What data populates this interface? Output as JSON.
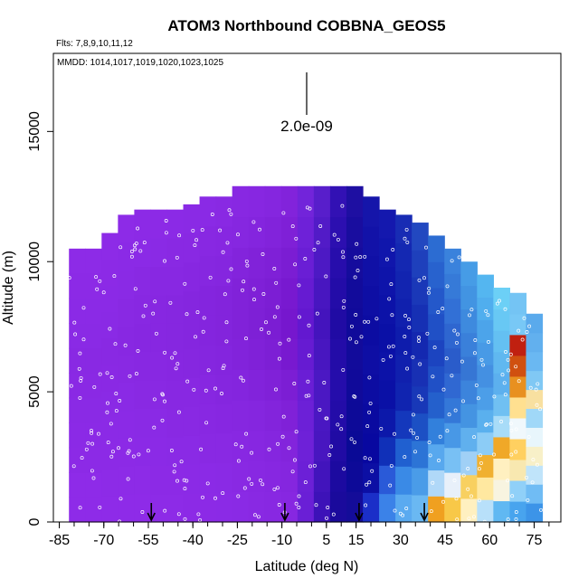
{
  "chart_data": {
    "type": "heatmap",
    "title": "ATOM3 Northbound COBBNA_GEOS5",
    "subtitle": "Flts: 7,8,9,10,11,12",
    "legend_note": "MMDD: 1014,1017,1019,1020,1023,1025",
    "xlabel": "Latitude (deg N)",
    "ylabel": "Altitude (m)",
    "xlim": [
      -87,
      84
    ],
    "ylim": [
      0,
      18000
    ],
    "x_ticks": [
      -85,
      -70,
      -55,
      -40,
      -25,
      -10,
      5,
      15,
      30,
      45,
      60,
      75
    ],
    "y_ticks": [
      0,
      5000,
      10000,
      15000
    ],
    "scale_bar_label": "2.0e-09",
    "arrow_latitudes": [
      -54,
      -9,
      16,
      38
    ],
    "columns": [
      {
        "lat": -79.0,
        "top": 10500,
        "colors": [
          "#8e2be8",
          "#8e2be8",
          "#8c2ae6",
          "#8b2ae6",
          "#8a2ae5",
          "#8a29e4",
          "#8929e3",
          "#8a2ae5",
          "#8b2ae6",
          "#8c2ae6",
          "#8d2be7"
        ]
      },
      {
        "lat": -73.5,
        "top": 10500,
        "colors": [
          "#8e2be8",
          "#8e2be8",
          "#8c2ae6",
          "#8b2ae6",
          "#8a2ae5",
          "#8a29e4",
          "#8929e3",
          "#8a2ae5",
          "#8b2ae6",
          "#8c2ae6",
          "#8d2be7"
        ]
      },
      {
        "lat": -68.0,
        "top": 11100,
        "colors": [
          "#8e2be8",
          "#8d2be7",
          "#8c2ae6",
          "#8b2ae6",
          "#8a2ae5",
          "#8a29e4",
          "#8929e3",
          "#8a2ae5",
          "#8b2ae6",
          "#8c2ae6",
          "#8d2be7"
        ]
      },
      {
        "lat": -62.5,
        "top": 11800,
        "colors": [
          "#8e2be8",
          "#8d2be7",
          "#8c2ae6",
          "#8b2ae6",
          "#8a2ae5",
          "#8929e3",
          "#8828e2",
          "#8929e3",
          "#8a2ae5",
          "#8b2ae6",
          "#8d2be7"
        ]
      },
      {
        "lat": -57.0,
        "top": 12000,
        "colors": [
          "#8e2be8",
          "#8d2be7",
          "#8b2ae6",
          "#8a2ae5",
          "#8929e3",
          "#8828e2",
          "#8727e1",
          "#8828e2",
          "#8929e3",
          "#8b2ae6",
          "#8c2ae6"
        ]
      },
      {
        "lat": -51.5,
        "top": 12000,
        "colors": [
          "#8d2be7",
          "#8c2ae6",
          "#8b2ae6",
          "#8a2ae5",
          "#8929e3",
          "#8828e2",
          "#8727e1",
          "#8727e1",
          "#8828e2",
          "#8a2ae5",
          "#8c2ae6"
        ]
      },
      {
        "lat": -46.0,
        "top": 12000,
        "colors": [
          "#8d2be7",
          "#8c2ae6",
          "#8a2ae5",
          "#8929e3",
          "#8828e2",
          "#8727e1",
          "#8627e0",
          "#8627e0",
          "#8828e2",
          "#8929e3",
          "#8b2ae6"
        ]
      },
      {
        "lat": -40.5,
        "top": 12200,
        "colors": [
          "#8c2ae6",
          "#8b2ae6",
          "#8a2ae5",
          "#8929e3",
          "#8828e2",
          "#8627e0",
          "#8526df",
          "#8526df",
          "#8727e1",
          "#8929e3",
          "#8a2ae5"
        ]
      },
      {
        "lat": -35.0,
        "top": 12500,
        "colors": [
          "#8c2ae6",
          "#8b2ae6",
          "#8929e3",
          "#8828e2",
          "#8727e1",
          "#8526df",
          "#8425de",
          "#8425de",
          "#8627e0",
          "#8828e2",
          "#8a2ae5"
        ]
      },
      {
        "lat": -29.5,
        "top": 12500,
        "colors": [
          "#8b2ae6",
          "#8a2ae5",
          "#8929e3",
          "#8727e1",
          "#8526df",
          "#8425de",
          "#8324dc",
          "#8324dc",
          "#8526df",
          "#8727e1",
          "#8929e3"
        ]
      },
      {
        "lat": -24.0,
        "top": 12900,
        "colors": [
          "#8a2ae5",
          "#8929e3",
          "#8828e2",
          "#8627e0",
          "#8425de",
          "#8223db",
          "#8122d9",
          "#8122d9",
          "#8324dc",
          "#8627e0",
          "#8828e2"
        ]
      },
      {
        "lat": -18.5,
        "top": 12900,
        "colors": [
          "#8929e3",
          "#8828e2",
          "#8727e1",
          "#8526df",
          "#8223db",
          "#8021d8",
          "#7e20d6",
          "#7f20d7",
          "#8122d9",
          "#8425de",
          "#8727e1"
        ]
      },
      {
        "lat": -13.0,
        "top": 12900,
        "colors": [
          "#8828e2",
          "#8727e1",
          "#8526df",
          "#8324dc",
          "#8021d8",
          "#7d1fd5",
          "#7b1dd3",
          "#7c1ed4",
          "#7f20d7",
          "#8223db",
          "#8526df"
        ]
      },
      {
        "lat": -7.5,
        "top": 12900,
        "colors": [
          "#8727e1",
          "#8526df",
          "#8324dc",
          "#8021d8",
          "#7c1ed4",
          "#7819d0",
          "#7617ce",
          "#7819d0",
          "#7b1dd3",
          "#7f20d7",
          "#8223db"
        ]
      },
      {
        "lat": -2.0,
        "top": 12900,
        "colors": [
          "#6a1fd6",
          "#6c20d7",
          "#6e21d8",
          "#6c20d7",
          "#6a1ed5",
          "#661bd2",
          "#6318d0",
          "#661bd2",
          "#6a1ed5",
          "#6e21d8",
          "#7224da"
        ]
      },
      {
        "lat": 3.5,
        "top": 12900,
        "colors": [
          "#3d12b8",
          "#4214bc",
          "#4816c0",
          "#4a17c2",
          "#4b18c3",
          "#4816c0",
          "#4414bd",
          "#4816c0",
          "#4d19c4",
          "#521bc7",
          "#581ecb"
        ]
      },
      {
        "lat": 9.0,
        "top": 12900,
        "colors": [
          "#1a0a9c",
          "#1c0aa0",
          "#200ba4",
          "#230ca8",
          "#250dab",
          "#230ca8",
          "#200ba4",
          "#230ca8",
          "#270dac",
          "#2c0fb0",
          "#3211b4"
        ]
      },
      {
        "lat": 14.5,
        "top": 12900,
        "colors": [
          "#140c99",
          "#0d0a98",
          "#0a0a96",
          "#0d0a98",
          "#100a9a",
          "#120b9b",
          "#100a9a",
          "#120b9b",
          "#150c9d",
          "#190d9f",
          "#1e0fa2"
        ]
      },
      {
        "lat": 20.0,
        "top": 12500,
        "colors": [
          "#1b2fc8",
          "#0c0fa4",
          "#0808a0",
          "#0a0aa0",
          "#0c0ca2",
          "#0e0ea4",
          "#0c0ca2",
          "#0e0ea4",
          "#1010a6",
          "#1212a8",
          "#1515aa"
        ]
      },
      {
        "lat": 25.5,
        "top": 12000,
        "colors": [
          "#3b82e8",
          "#2a5ad8",
          "#1030b8",
          "#0c18aa",
          "#0a10a6",
          "#0c12a8",
          "#0a10a6",
          "#0c12a8",
          "#0e14aa",
          "#1016ac",
          "#1418ae"
        ]
      },
      {
        "lat": 31.0,
        "top": 11800,
        "colors": [
          "#5aaaf0",
          "#3a8ae6",
          "#2060d0",
          "#1438bc",
          "#1024b0",
          "#1020ae",
          "#0e1cac",
          "#1020ae",
          "#1224b0",
          "#1428b2",
          "#182cb4"
        ]
      },
      {
        "lat": 36.5,
        "top": 11500,
        "colors": [
          "#6ab8f2",
          "#4a9ce8",
          "#2c74d6",
          "#1c50c4",
          "#1838b8",
          "#1830b4",
          "#1428b0",
          "#1630b4",
          "#1a38b8",
          "#1e40bc",
          "#2248c0"
        ]
      },
      {
        "lat": 42.0,
        "top": 11000,
        "colors": [
          "#f0a020",
          "#b0d8f8",
          "#58a8ee",
          "#3280dc",
          "#2460cc",
          "#2050c6",
          "#1c44c0",
          "#2050c6",
          "#2458ca",
          "#2862ce",
          "#2c6cd2"
        ]
      },
      {
        "lat": 47.5,
        "top": 10500,
        "colors": [
          "#f8c848",
          "#e8f0fa",
          "#78c0f4",
          "#4898e6",
          "#3478d8",
          "#3068d2",
          "#2a5cca",
          "#2e66d0",
          "#3270d6",
          "#367ad8",
          "#3a82dc"
        ]
      },
      {
        "lat": 53.0,
        "top": 10000,
        "colors": [
          "#fff0c0",
          "#f8d060",
          "#a0d0f6",
          "#60b0ee",
          "#4494e2",
          "#3c84dc",
          "#3676d4",
          "#3a80da",
          "#3e8ade",
          "#4294e2",
          "#469ce6"
        ]
      },
      {
        "lat": 58.5,
        "top": 9500,
        "colors": [
          "#b8e0fa",
          "#ffe8a0",
          "#f0b030",
          "#8cccf6",
          "#5ab0ee",
          "#4c9ee8",
          "#4490e2",
          "#489ae6",
          "#4ca4ea",
          "#50aeee",
          "#54b6f0"
        ]
      },
      {
        "lat": 64.0,
        "top": 9000,
        "colors": [
          "#60b8f2",
          "#f8f4e0",
          "#fff0c0",
          "#f0a828",
          "#a8dcf8",
          "#70c0f2",
          "#5cb0ee",
          "#60b8f0",
          "#64c0f2",
          "#68c8f4",
          "#6cd0f6"
        ]
      },
      {
        "lat": 69.5,
        "top": 8800,
        "colors": [
          "#48a4ee",
          "#90d0f8",
          "#f8e8b0",
          "#ffd060",
          "#f0f8fc",
          "#ffe090",
          "#e89020",
          "#d05010",
          "#c02010",
          "#78c8f6",
          "#74c4f4"
        ]
      },
      {
        "lat": 75.0,
        "top": 8000,
        "colors": [
          "#3c94e8",
          "#70bcf4",
          "#c0e4fa",
          "#f8f0c8",
          "#e8f6fc",
          "#a0d8f8",
          "#f8e0a0",
          "#80c8f4",
          "#6ab8f2",
          "#62b0ee",
          "#5aaaec"
        ]
      }
    ]
  }
}
